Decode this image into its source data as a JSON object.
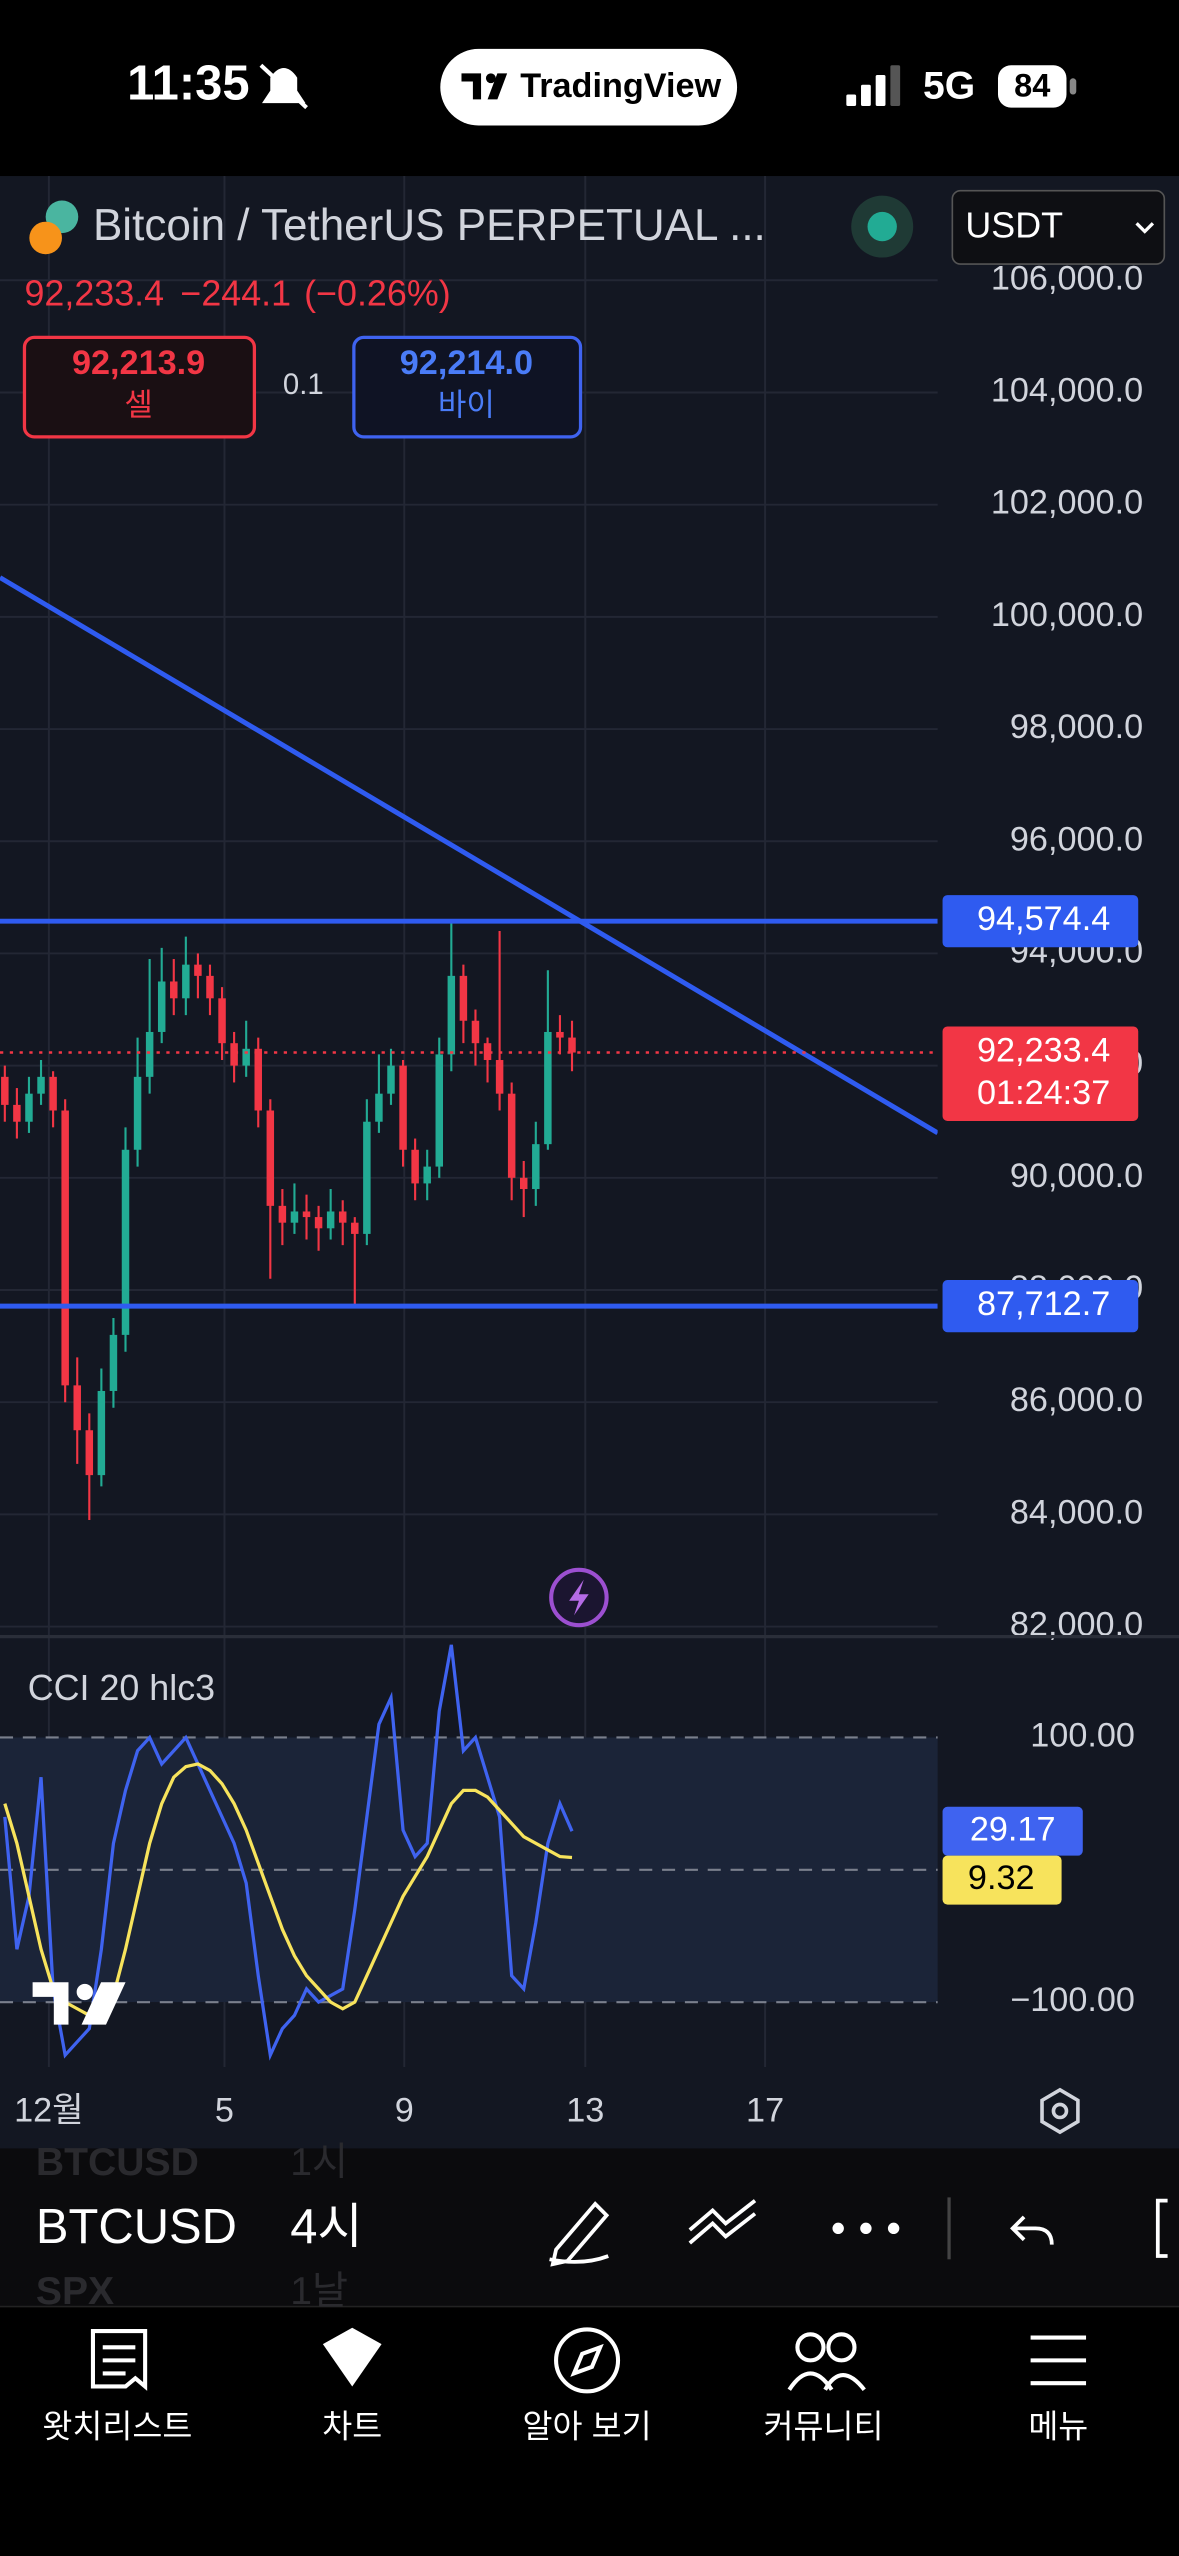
{
  "status_bar": {
    "time": "11:35",
    "app": "TradingView",
    "network": "5G",
    "battery": "84"
  },
  "header": {
    "symbol": "Bitcoin / TetherUS PERPETUAL ...",
    "currency": "USDT",
    "price": "92,233.4",
    "change": "−244.1",
    "change_pct": "(−0.26%)",
    "sell_price": "92,213.9",
    "sell_label": "셀",
    "spread": "0.1",
    "buy_price": "92,214.0",
    "buy_label": "바이"
  },
  "chart_data": [
    {
      "type": "candlestick",
      "up_color": "#22ab94",
      "down_color": "#f23645",
      "grid": true,
      "open": [
        91800,
        91300,
        91000,
        91500,
        91800,
        91200,
        86300,
        85500,
        84700,
        86200,
        87200,
        90500,
        91800,
        92600,
        93500,
        93200,
        93800,
        93600,
        93200,
        92400,
        92000,
        92300,
        91200,
        89500,
        89200,
        89400,
        89300,
        89100,
        89400,
        89200,
        89000,
        91000,
        91500,
        92000,
        90500,
        89900,
        90200,
        92200,
        93600,
        92800,
        92400,
        92100,
        91500,
        90000,
        89800,
        90600,
        92600,
        92500
      ],
      "high": [
        92000,
        91600,
        91800,
        92100,
        91900,
        91400,
        86800,
        85800,
        86600,
        87500,
        90900,
        92500,
        93900,
        94100,
        93900,
        94300,
        94000,
        93800,
        93400,
        92600,
        92800,
        92500,
        91400,
        89800,
        89900,
        89700,
        89500,
        89800,
        89600,
        89300,
        91400,
        92200,
        92300,
        92100,
        90700,
        90500,
        92500,
        94574.4,
        93800,
        93000,
        92500,
        94400,
        91700,
        90300,
        91000,
        93700,
        92900,
        92800
      ],
      "low": [
        91000,
        90700,
        90800,
        91300,
        90900,
        86000,
        84900,
        83900,
        84500,
        85900,
        86900,
        90200,
        91500,
        92400,
        92900,
        92900,
        93200,
        92900,
        92100,
        91700,
        91800,
        90900,
        88200,
        88800,
        89000,
        88900,
        88700,
        88900,
        88800,
        87712.7,
        88800,
        90800,
        91300,
        90200,
        89600,
        89600,
        90000,
        91900,
        92400,
        92000,
        91700,
        91200,
        89600,
        89300,
        89500,
        90500,
        92200,
        91900
      ],
      "close": [
        91300,
        91000,
        91500,
        91800,
        91200,
        86300,
        85500,
        84700,
        86200,
        87200,
        90500,
        91800,
        92600,
        93500,
        93200,
        93800,
        93600,
        93200,
        92400,
        92000,
        92300,
        91200,
        89500,
        89200,
        89400,
        89300,
        89100,
        89400,
        89200,
        89000,
        91000,
        91500,
        92000,
        90500,
        89900,
        90200,
        92200,
        93600,
        92800,
        92400,
        92100,
        91500,
        90000,
        89800,
        90600,
        92600,
        92500,
        92233.4
      ],
      "xlim": [
        -0.4,
        77.3
      ],
      "xticks": [
        {
          "value": 3.65,
          "label": "12월"
        },
        {
          "value": 18.2,
          "label": "5"
        },
        {
          "value": 33.1,
          "label": "9"
        },
        {
          "value": 48.1,
          "label": "13"
        },
        {
          "value": 63,
          "label": "17"
        }
      ],
      "ylim": [
        81850,
        107800
      ],
      "yticks": [
        {
          "value": 106000,
          "label": "106,000.0"
        },
        {
          "value": 104000,
          "label": "104,000.0"
        },
        {
          "value": 102000,
          "label": "102,000.0"
        },
        {
          "value": 100000,
          "label": "100,000.0"
        },
        {
          "value": 98000,
          "label": "98,000.0"
        },
        {
          "value": 96000,
          "label": "96,000.0"
        },
        {
          "value": 94000,
          "label": "94,000.0"
        },
        {
          "value": 92000,
          "label": "92,000.0"
        },
        {
          "value": 90000,
          "label": "90,000.0"
        },
        {
          "value": 88000,
          "label": "88,000.0"
        },
        {
          "value": 86000,
          "label": "86,000.0"
        },
        {
          "value": 84000,
          "label": "84,000.0"
        },
        {
          "value": 82000,
          "label": "82,000.0"
        }
      ],
      "price_lines": [
        {
          "value": 94574.4,
          "label": "94,574.4",
          "color": "#2f5bf0"
        },
        {
          "value": 87712.7,
          "label": "87,712.7",
          "color": "#2f5bf0"
        }
      ],
      "trend_line": [
        100700,
        90800
      ],
      "current": {
        "value": 92233.4,
        "label": "92,233.4",
        "countdown": "01:24:37",
        "color": "#f23645"
      }
    },
    {
      "type": "line",
      "title": "CCI 20 hlc3",
      "ylim": [
        -149,
        175
      ],
      "yticks": [
        {
          "value": 100,
          "label": "100.00"
        },
        {
          "value": -100,
          "label": "−100.00"
        }
      ],
      "levels": [
        100,
        0,
        -100
      ],
      "series": [
        {
          "color": "#3f63f0",
          "values": [
            40,
            -60,
            -20,
            70,
            -90,
            -140,
            -130,
            -120,
            -60,
            20,
            60,
            90,
            100,
            80,
            90,
            100,
            80,
            60,
            40,
            20,
            -10,
            -80,
            -140,
            -120,
            -110,
            -90,
            -100,
            -95,
            -90,
            -30,
            40,
            110,
            130,
            30,
            10,
            20,
            120,
            170,
            90,
            100,
            70,
            40,
            -80,
            -90,
            -40,
            20,
            50,
            29.17
          ]
        },
        {
          "color": "#f7e35c",
          "values": [
            50,
            20,
            -20,
            -60,
            -90,
            -100,
            -105,
            -110,
            -110,
            -95,
            -60,
            -20,
            20,
            50,
            70,
            78,
            80,
            75,
            65,
            50,
            30,
            5,
            -20,
            -45,
            -65,
            -80,
            -90,
            -100,
            -105,
            -100,
            -80,
            -60,
            -40,
            -20,
            -5,
            10,
            30,
            50,
            60,
            60,
            55,
            45,
            35,
            25,
            20,
            15,
            10,
            9.32
          ]
        }
      ]
    }
  ],
  "toolbar": {
    "prev_symbol": "BTCUSD",
    "prev_interval": "1시",
    "symbol": "BTCUSD",
    "interval": "4시",
    "next_symbol": "SPX",
    "next_interval": "1날"
  },
  "nav": [
    {
      "label": "왓치리스트"
    },
    {
      "label": "차트"
    },
    {
      "label": "알아 보기"
    },
    {
      "label": "커뮤니티"
    },
    {
      "label": "메뉴"
    }
  ]
}
